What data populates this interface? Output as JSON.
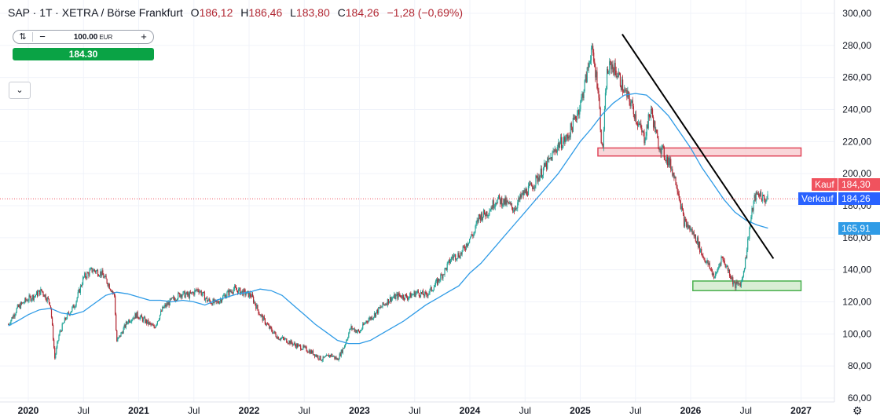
{
  "legend": {
    "symbol": "SAP · 1T · XETRA / Börse Frankfurt",
    "open_label": "O",
    "open": "186,12",
    "high_label": "H",
    "high": "186,46",
    "low_label": "L",
    "low": "183,80",
    "close_label": "C",
    "close": "184,26",
    "change": "−1,28 (−0,69%)"
  },
  "order_panel": {
    "quantity": "100.00",
    "unit": "EUR",
    "minus_label": "−",
    "plus_label": "+",
    "price_button": "184.30"
  },
  "collapse_label": "⌄",
  "price_tags": {
    "buy_label": "Kauf",
    "buy_value": "184,30",
    "sell_label": "Verkauf",
    "sell_value": "184,26",
    "ma_value": "165,91"
  },
  "colors": {
    "up": "#26a69a",
    "down": "#b22833",
    "ma": "#2f9be6",
    "buy": "#f0525e",
    "sell": "#2962ff",
    "ma_tag": "#2f9be6",
    "resistance_fill": "#f7c5c9",
    "resistance_stroke": "#e0475a",
    "support_fill": "#cfeacb",
    "support_stroke": "#49b04d"
  },
  "chart_data": {
    "type": "line",
    "title": "SAP · 1T · XETRA / Börse Frankfurt",
    "x_ticks": [
      "2020",
      "Jul",
      "2021",
      "Jul",
      "2022",
      "Jul",
      "2023",
      "Jul",
      "2024",
      "Jul",
      "2025",
      "Jul",
      "2026",
      "Jul",
      "2027"
    ],
    "y_ticks": [
      "60,00",
      "80,00",
      "100,00",
      "120,00",
      "140,00",
      "160,00",
      "180,00",
      "200,00",
      "220,00",
      "240,00",
      "260,00",
      "280,00",
      "300,00"
    ],
    "ylim": [
      60,
      300
    ],
    "xlim": [
      2019.8,
      2027.3
    ],
    "series": [
      {
        "x": [
          2019.82,
          2019.9,
          2019.98,
          2020.06,
          2020.12,
          2020.2,
          2020.24,
          2020.28,
          2020.34,
          2020.42,
          2020.5,
          2020.58,
          2020.66,
          2020.72,
          2020.78,
          2020.8,
          2020.84,
          2020.9,
          2020.98,
          2021.06,
          2021.14,
          2021.22,
          2021.3,
          2021.38,
          2021.46,
          2021.54,
          2021.62,
          2021.7,
          2021.78,
          2021.86,
          2021.94,
          2022.02,
          2022.1,
          2022.18,
          2022.26,
          2022.34,
          2022.42,
          2022.5,
          2022.58,
          2022.66,
          2022.74,
          2022.8,
          2022.86,
          2022.92,
          2023.0,
          2023.06,
          2023.12,
          2023.2,
          2023.28,
          2023.36,
          2023.44,
          2023.52,
          2023.6,
          2023.68,
          2023.76,
          2023.84,
          2023.92,
          2024.0,
          2024.04,
          2024.08,
          2024.16,
          2024.24,
          2024.32,
          2024.4,
          2024.48,
          2024.56,
          2024.64,
          2024.72,
          2024.8,
          2024.88,
          2024.94,
          2025.0,
          2025.06,
          2025.1,
          2025.16,
          2025.2,
          2025.24,
          2025.28,
          2025.34,
          2025.4,
          2025.46,
          2025.52,
          2025.58,
          2025.64,
          2025.7,
          2025.76,
          2025.82,
          2025.88,
          2025.94,
          2026.0,
          2026.06,
          2026.1,
          2026.16,
          2026.22,
          2026.28,
          2026.34,
          2026.4,
          2026.46,
          2026.5,
          2026.54,
          2026.58,
          2026.62,
          2026.66,
          2026.7
        ],
        "values": [
          106,
          116,
          121,
          124,
          127,
          119,
          85,
          100,
          110,
          118,
          135,
          140,
          138,
          132,
          124,
          95,
          100,
          108,
          112,
          108,
          104,
          116,
          121,
          125,
          124,
          128,
          121,
          119,
          124,
          128,
          126,
          124,
          112,
          104,
          98,
          96,
          93,
          91,
          88,
          84,
          87,
          84,
          92,
          104,
          101,
          108,
          111,
          117,
          122,
          124,
          123,
          126,
          124,
          130,
          138,
          148,
          150,
          160,
          163,
          173,
          176,
          184,
          182,
          178,
          187,
          192,
          200,
          208,
          218,
          222,
          232,
          243,
          262,
          278,
          255,
          212,
          262,
          268,
          262,
          251,
          244,
          232,
          222,
          240,
          220,
          212,
          205,
          192,
          170,
          165,
          158,
          150,
          143,
          135,
          148,
          140,
          130,
          132,
          148,
          170,
          185,
          188,
          184,
          184
        ]
      },
      {
        "x": [
          2019.82,
          2019.9,
          2020.0,
          2020.1,
          2020.2,
          2020.3,
          2020.4,
          2020.5,
          2020.6,
          2020.7,
          2020.8,
          2020.9,
          2021.0,
          2021.1,
          2021.2,
          2021.3,
          2021.4,
          2021.5,
          2021.6,
          2021.7,
          2021.8,
          2021.9,
          2022.0,
          2022.1,
          2022.2,
          2022.3,
          2022.4,
          2022.5,
          2022.6,
          2022.7,
          2022.8,
          2022.9,
          2023.0,
          2023.1,
          2023.2,
          2023.3,
          2023.4,
          2023.5,
          2023.6,
          2023.7,
          2023.8,
          2023.9,
          2024.0,
          2024.1,
          2024.2,
          2024.3,
          2024.4,
          2024.5,
          2024.6,
          2024.7,
          2024.8,
          2024.9,
          2025.0,
          2025.1,
          2025.2,
          2025.3,
          2025.4,
          2025.5,
          2025.6,
          2025.7,
          2025.8,
          2025.9,
          2026.0,
          2026.1,
          2026.2,
          2026.3,
          2026.4,
          2026.5,
          2026.6,
          2026.7
        ],
        "values": [
          105,
          108,
          112,
          115,
          116,
          113,
          112,
          114,
          119,
          124,
          126,
          125,
          123,
          121,
          121,
          120,
          121,
          120,
          118,
          121,
          123,
          125,
          126,
          128,
          127,
          124,
          118,
          112,
          106,
          101,
          96,
          94,
          94,
          96,
          100,
          104,
          108,
          113,
          118,
          122,
          126,
          130,
          138,
          144,
          152,
          160,
          168,
          176,
          184,
          192,
          200,
          210,
          220,
          228,
          237,
          244,
          249,
          250,
          249,
          243,
          236,
          226,
          216,
          204,
          194,
          184,
          176,
          171,
          168,
          166
        ]
      }
    ],
    "trendline": {
      "x": [
        2025.38,
        2026.75
      ],
      "y": [
        287,
        147
      ]
    },
    "resistance_zone": {
      "x": [
        2025.16,
        2027.0
      ],
      "y": [
        211,
        216
      ]
    },
    "support_zone": {
      "x": [
        2026.02,
        2027.0
      ],
      "y": [
        127,
        133
      ]
    },
    "last_price": 184.26
  }
}
